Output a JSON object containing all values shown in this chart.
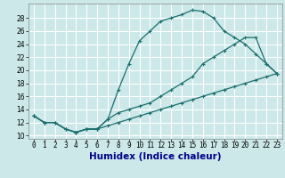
{
  "title": "",
  "xlabel": "Humidex (Indice chaleur)",
  "ylabel": "",
  "bg_color": "#cce8e8",
  "grid_color": "#ffffff",
  "line_color": "#1a6e6e",
  "xlim": [
    -0.5,
    23.5
  ],
  "ylim": [
    9.5,
    30.2
  ],
  "xticks": [
    0,
    1,
    2,
    3,
    4,
    5,
    6,
    7,
    8,
    9,
    10,
    11,
    12,
    13,
    14,
    15,
    16,
    17,
    18,
    19,
    20,
    21,
    22,
    23
  ],
  "yticks": [
    10,
    12,
    14,
    16,
    18,
    20,
    22,
    24,
    26,
    28
  ],
  "series1_x": [
    0,
    1,
    2,
    3,
    4,
    5,
    6,
    7,
    8,
    9,
    10,
    11,
    12,
    13,
    14,
    15,
    16,
    17,
    18,
    19,
    20,
    21,
    22,
    23
  ],
  "series1_y": [
    13,
    12,
    12,
    11,
    10.5,
    11,
    11,
    12.5,
    17,
    21,
    24.5,
    26,
    27.5,
    28,
    28.5,
    29.2,
    29,
    28,
    26,
    25,
    24,
    22.5,
    21,
    19.5
  ],
  "series2_x": [
    0,
    1,
    2,
    3,
    4,
    5,
    6,
    7,
    8,
    9,
    10,
    11,
    12,
    13,
    14,
    15,
    16,
    17,
    18,
    19,
    20,
    21,
    22,
    23
  ],
  "series2_y": [
    13,
    12,
    12,
    11,
    10.5,
    11,
    11,
    12.5,
    13.5,
    14,
    14.5,
    15,
    16,
    17,
    18,
    19,
    21,
    22,
    23,
    24,
    25,
    25,
    21,
    19.5
  ],
  "series3_x": [
    0,
    1,
    2,
    3,
    4,
    5,
    6,
    7,
    8,
    9,
    10,
    11,
    12,
    13,
    14,
    15,
    16,
    17,
    18,
    19,
    20,
    21,
    22,
    23
  ],
  "series3_y": [
    13,
    12,
    12,
    11,
    10.5,
    11,
    11,
    11.5,
    12,
    12.5,
    13,
    13.5,
    14,
    14.5,
    15,
    15.5,
    16,
    16.5,
    17,
    17.5,
    18,
    18.5,
    19,
    19.5
  ],
  "xlabel_color": "#00008b",
  "xlabel_fontsize": 7.5,
  "tick_fontsize": 5.5
}
